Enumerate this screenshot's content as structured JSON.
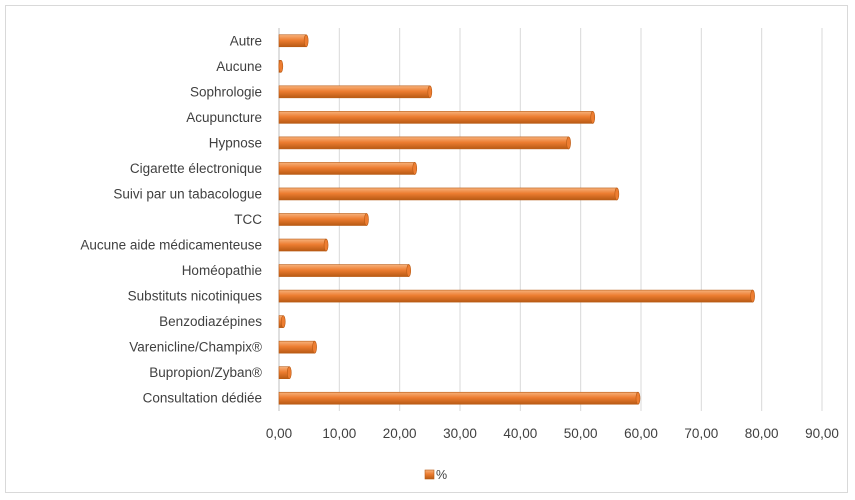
{
  "chart_data": {
    "type": "bar",
    "orientation": "horizontal",
    "categories": [
      "Autre",
      "Aucune",
      "Sophrologie",
      "Acupuncture",
      "Hypnose",
      "Cigarette électronique",
      "Suivi par un tabacologue",
      "TCC",
      "Aucune aide médicamenteuse",
      "Homéopathie",
      "Substituts nicotiniques",
      "Benzodiazépines",
      "Varenicline/Champix®",
      "Bupropion/Zyban®",
      "Consultation dédiée"
    ],
    "series": [
      {
        "name": "%",
        "values": [
          4.5,
          0.3,
          25.0,
          52.0,
          48.0,
          22.5,
          56.0,
          14.5,
          7.8,
          21.5,
          78.5,
          0.7,
          5.9,
          1.7,
          59.5
        ]
      }
    ],
    "xlim": [
      0,
      90
    ],
    "ticks": [
      "0,00",
      "10,00",
      "20,00",
      "30,00",
      "40,00",
      "50,00",
      "60,00",
      "70,00",
      "80,00",
      "90,00"
    ],
    "grid": true,
    "legend_position": "bottom",
    "colors": {
      "bar": "#ed7d31",
      "bar_dark": "#b85a14",
      "bar_light": "#f7b27c",
      "grid": "#d9d9d9",
      "text": "#404040"
    }
  }
}
